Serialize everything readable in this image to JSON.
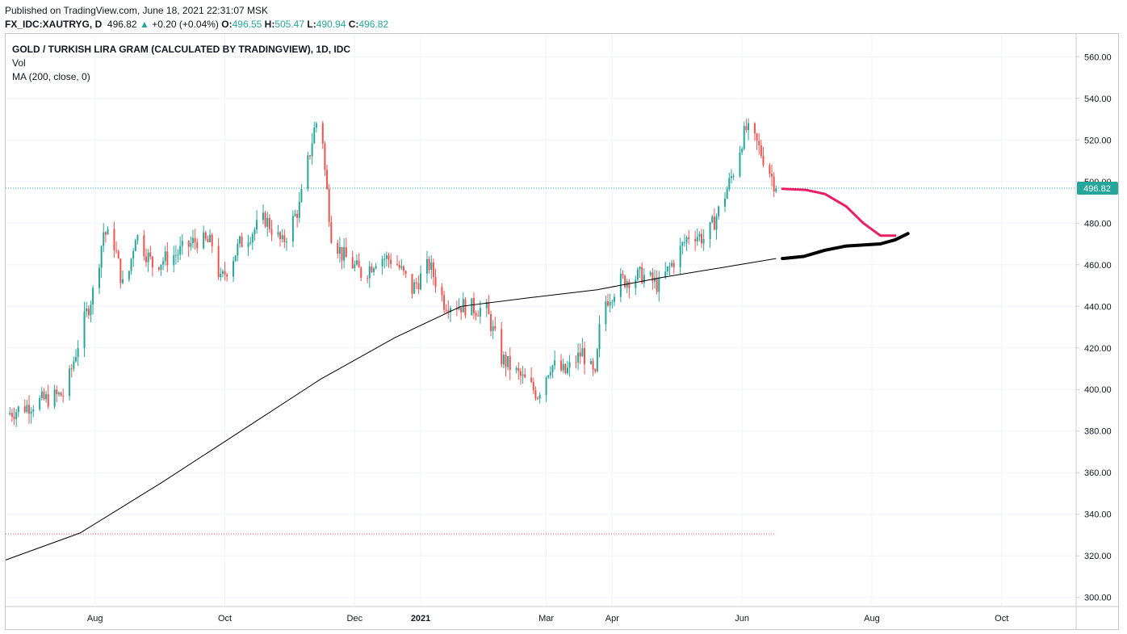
{
  "header": {
    "published": "Published on TradingView.com, June 18, 2021 22:31:07 MSK",
    "symbol": "FX_IDC:XAUTRYG, D",
    "last": "496.82",
    "change": "+0.20 (+0.04%)",
    "o_label": "O:",
    "o_val": "496.55",
    "h_label": "H:",
    "h_val": "505.47",
    "l_label": "L:",
    "l_val": "490.94",
    "c_label": "C:",
    "c_val": "496.82"
  },
  "legend": {
    "title": "GOLD / TURKISH LIRA GRAM (CALCULATED BY TRADINGVIEW), 1D, IDC",
    "vol": "Vol",
    "ma": "MA (200, close, 0)"
  },
  "price_tag": "496.82",
  "colors": {
    "up": "#26a69a",
    "down": "#ef5350",
    "ma": "#000000",
    "drawing_pink": "#e91e63",
    "drawing_black": "#000000"
  },
  "chart_data": {
    "type": "candlestick",
    "y_ticks": [
      "300.00",
      "320.00",
      "340.00",
      "360.00",
      "380.00",
      "400.00",
      "420.00",
      "440.00",
      "460.00",
      "480.00",
      "500.00",
      "520.00",
      "540.00",
      "560.00"
    ],
    "ylim": [
      296,
      571
    ],
    "x_ticks": [
      {
        "label": "Aug",
        "date": "2020-08-01"
      },
      {
        "label": "Oct",
        "date": "2020-10-01"
      },
      {
        "label": "Dec",
        "date": "2020-12-01"
      },
      {
        "label": "2021",
        "date": "2021-01-01",
        "bold": true
      },
      {
        "label": "Mar",
        "date": "2021-03-01"
      },
      {
        "label": "Apr",
        "date": "2021-04-01"
      },
      {
        "label": "Jun",
        "date": "2021-06-01"
      },
      {
        "label": "Aug",
        "date": "2021-08-01"
      },
      {
        "label": "Oct",
        "date": "2021-10-01"
      }
    ],
    "x_range": [
      "2020-06-20",
      "2021-11-05"
    ],
    "last_price": 496.82,
    "ma_reference_level": 330.5,
    "price_path": [
      [
        "2020-06-20",
        388
      ],
      [
        "2020-07-05",
        394
      ],
      [
        "2020-07-18",
        398
      ],
      [
        "2020-07-26",
        430
      ],
      [
        "2020-08-01",
        450
      ],
      [
        "2020-08-05",
        476
      ],
      [
        "2020-08-10",
        470
      ],
      [
        "2020-08-15",
        445
      ],
      [
        "2020-08-20",
        475
      ],
      [
        "2020-08-28",
        460
      ],
      [
        "2020-09-08",
        465
      ],
      [
        "2020-09-18",
        472
      ],
      [
        "2020-09-25",
        470
      ],
      [
        "2020-09-29",
        452
      ],
      [
        "2020-10-08",
        470
      ],
      [
        "2020-10-20",
        482
      ],
      [
        "2020-10-28",
        470
      ],
      [
        "2020-11-05",
        488
      ],
      [
        "2020-11-12",
        525
      ],
      [
        "2020-11-15",
        535
      ],
      [
        "2020-11-17",
        505
      ],
      [
        "2020-11-20",
        475
      ],
      [
        "2020-11-25",
        465
      ],
      [
        "2020-12-05",
        455
      ],
      [
        "2020-12-12",
        464
      ],
      [
        "2020-12-20",
        462
      ],
      [
        "2020-12-28",
        448
      ],
      [
        "2021-01-05",
        460
      ],
      [
        "2021-01-12",
        442
      ],
      [
        "2021-01-22",
        440
      ],
      [
        "2021-02-01",
        438
      ],
      [
        "2021-02-08",
        415
      ],
      [
        "2021-02-18",
        405
      ],
      [
        "2021-02-25",
        398
      ],
      [
        "2021-03-03",
        412
      ],
      [
        "2021-03-10",
        408
      ],
      [
        "2021-03-18",
        418
      ],
      [
        "2021-03-24",
        405
      ],
      [
        "2021-03-27",
        440
      ],
      [
        "2021-04-05",
        452
      ],
      [
        "2021-04-15",
        455
      ],
      [
        "2021-04-23",
        450
      ],
      [
        "2021-04-30",
        462
      ],
      [
        "2021-05-08",
        476
      ],
      [
        "2021-05-15",
        472
      ],
      [
        "2021-05-22",
        488
      ],
      [
        "2021-05-28",
        505
      ],
      [
        "2021-06-01",
        520
      ],
      [
        "2021-06-03",
        525
      ],
      [
        "2021-06-08",
        518
      ],
      [
        "2021-06-14",
        505
      ],
      [
        "2021-06-17",
        497
      ]
    ],
    "ma_200": [
      [
        "2020-06-20",
        318
      ],
      [
        "2020-07-25",
        331
      ],
      [
        "2020-09-01",
        355
      ],
      [
        "2020-10-10",
        381
      ],
      [
        "2020-11-15",
        405
      ],
      [
        "2020-12-20",
        425
      ],
      [
        "2021-01-20",
        440
      ],
      [
        "2021-02-20",
        444
      ],
      [
        "2021-03-25",
        448
      ],
      [
        "2021-04-25",
        454
      ],
      [
        "2021-05-25",
        459
      ],
      [
        "2021-06-17",
        463
      ]
    ],
    "drawing_pink": [
      [
        "2021-06-20",
        496.5
      ],
      [
        "2021-07-01",
        496
      ],
      [
        "2021-07-10",
        494
      ],
      [
        "2021-07-20",
        488
      ],
      [
        "2021-07-28",
        480
      ],
      [
        "2021-08-05",
        474
      ],
      [
        "2021-08-12",
        474
      ]
    ],
    "drawing_black": [
      [
        "2021-06-20",
        463
      ],
      [
        "2021-06-30",
        464
      ],
      [
        "2021-07-10",
        467
      ],
      [
        "2021-07-20",
        469
      ],
      [
        "2021-08-05",
        470
      ],
      [
        "2021-08-12",
        472
      ],
      [
        "2021-08-18",
        475
      ]
    ]
  }
}
